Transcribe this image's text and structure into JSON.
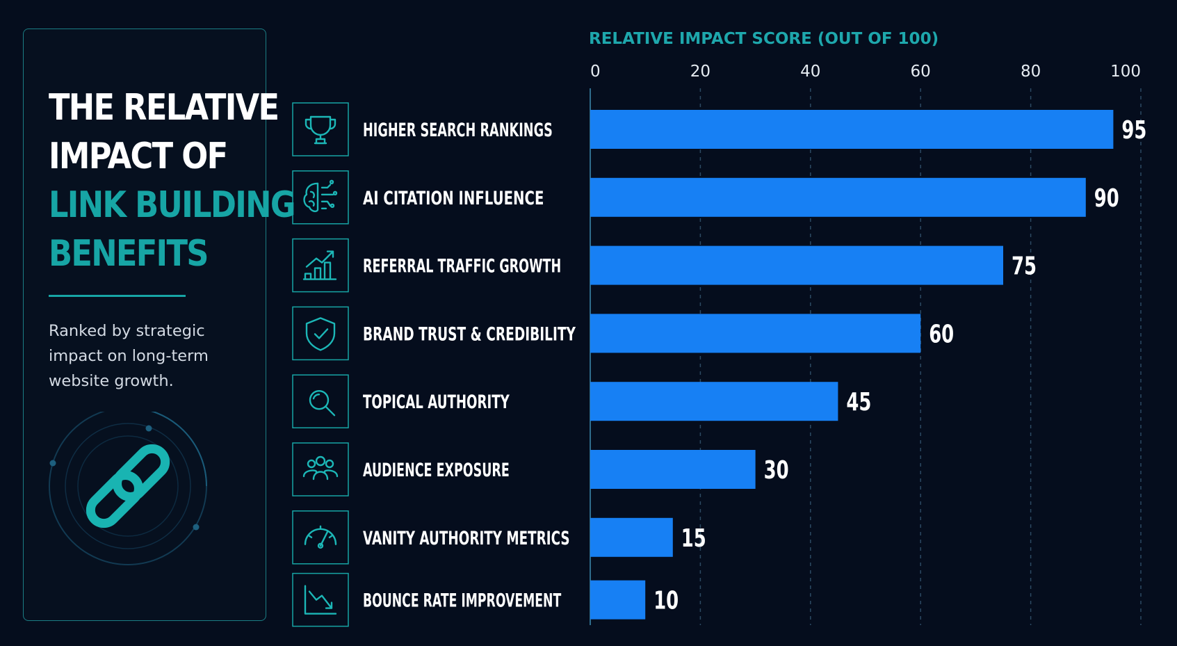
{
  "panel": {
    "title_lines": [
      "THE RELATIVE",
      "IMPACT OF",
      "LINK BUILDING",
      "BENEFITS"
    ],
    "subtitle": "Ranked by strategic impact on long-term website growth.",
    "link_icon": "chain-link-icon"
  },
  "colors": {
    "background": "#050d1d",
    "accent": "#17a5a5",
    "bar": "#1780f4"
  },
  "chart_data": {
    "type": "bar",
    "orientation": "horizontal",
    "xlabel": "RELATIVE IMPACT SCORE (OUT OF 100)",
    "xlim": [
      0,
      100
    ],
    "ticks": [
      0,
      20,
      40,
      60,
      80,
      100
    ],
    "grid": true,
    "categories": [
      "HIGHER SEARCH RANKINGS",
      "AI CITATION INFLUENCE",
      "REFERRAL TRAFFIC GROWTH",
      "BRAND TRUST & CREDIBILITY",
      "TOPICAL AUTHORITY",
      "AUDIENCE EXPOSURE",
      "VANITY AUTHORITY METRICS",
      "BOUNCE RATE IMPROVEMENT"
    ],
    "values": [
      95,
      90,
      75,
      60,
      45,
      30,
      15,
      10
    ],
    "icons": [
      "trophy-icon",
      "ai-brain-icon",
      "growth-chart-icon",
      "shield-check-icon",
      "magnifier-icon",
      "audience-icon",
      "speedometer-icon",
      "declining-chart-icon"
    ]
  }
}
